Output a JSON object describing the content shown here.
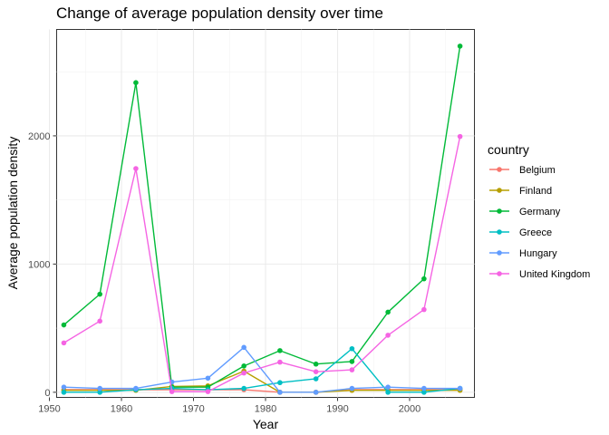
{
  "chart_data": {
    "type": "line",
    "title": "Change of average population density over time",
    "xlabel": "Year",
    "ylabel": "Average population density",
    "xlim": [
      1951,
      2009
    ],
    "ylim": [
      -40,
      2830
    ],
    "x_ticks": [
      1950,
      1960,
      1970,
      1980,
      1990,
      2000
    ],
    "y_ticks": [
      0,
      1000,
      2000
    ],
    "grid": true,
    "legend": {
      "title": "country",
      "position": "right"
    },
    "x": [
      1952,
      1957,
      1962,
      1967,
      1972,
      1977,
      1982,
      1987,
      1992,
      1997,
      2002,
      2007
    ],
    "series": [
      {
        "name": "Belgium",
        "color": "#F8766D",
        "values": [
          20,
          20,
          20,
          20,
          20,
          20,
          0,
          0,
          20,
          20,
          20,
          20
        ]
      },
      {
        "name": "Finland",
        "color": "#B79F00",
        "values": [
          15,
          15,
          15,
          45,
          50,
          165,
          0,
          0,
          15,
          15,
          15,
          15
        ]
      },
      {
        "name": "Germany",
        "color": "#00BA38",
        "values": [
          525,
          765,
          2415,
          40,
          40,
          205,
          325,
          220,
          240,
          625,
          885,
          2700
        ]
      },
      {
        "name": "Greece",
        "color": "#00BFC4",
        "values": [
          0,
          0,
          20,
          30,
          20,
          30,
          75,
          105,
          340,
          0,
          0,
          30
        ]
      },
      {
        "name": "Hungary",
        "color": "#619CFF",
        "values": [
          40,
          30,
          30,
          80,
          110,
          350,
          0,
          0,
          30,
          40,
          30,
          30
        ]
      },
      {
        "name": "United Kingdom",
        "color": "#F564E3",
        "values": [
          385,
          555,
          1745,
          5,
          5,
          150,
          235,
          160,
          175,
          445,
          645,
          1995
        ]
      }
    ]
  }
}
